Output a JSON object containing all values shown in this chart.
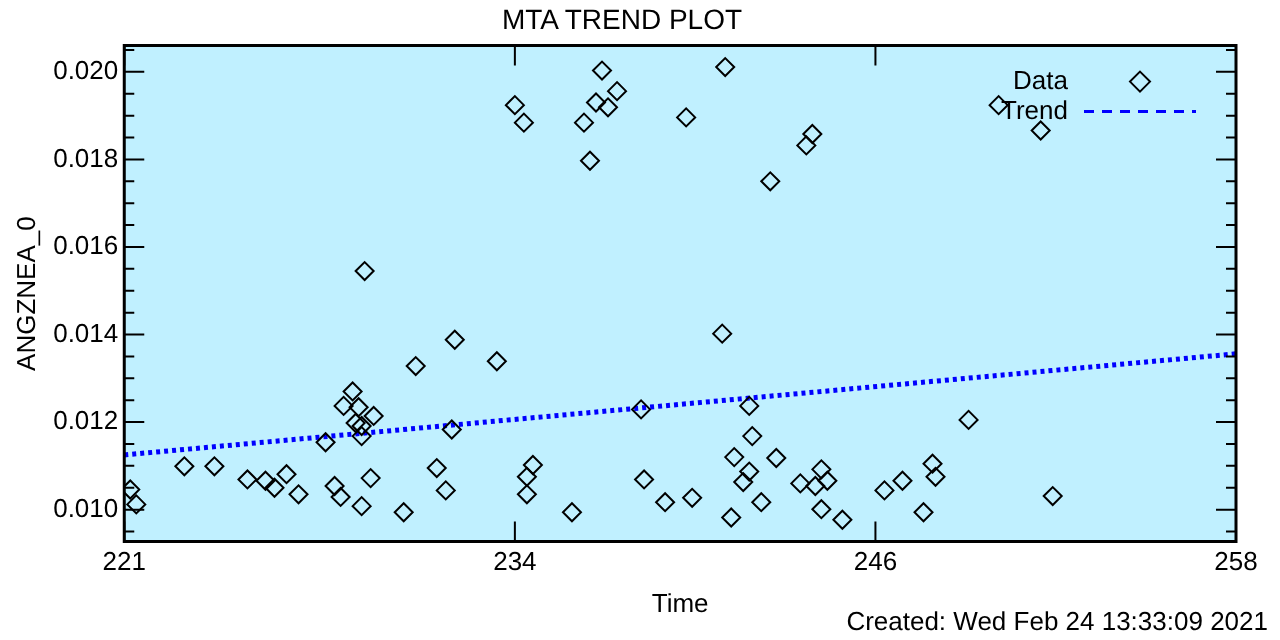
{
  "chart_data": {
    "type": "scatter",
    "title": "MTA TREND PLOT",
    "xlabel": "Time",
    "ylabel": "ANGZNEA_0",
    "annotations": [
      "Created: Wed Feb 24 13:33:09 2021"
    ],
    "xlim": [
      221,
      258
    ],
    "xticks": [
      221,
      234,
      246,
      258
    ],
    "ylim": [
      0.00927,
      0.0206
    ],
    "yticks": [
      {
        "value": 0.0095,
        "label": null
      },
      {
        "value": 0.01,
        "label": "0.010"
      },
      {
        "value": 0.0105,
        "label": null
      },
      {
        "value": 0.011,
        "label": null
      },
      {
        "value": 0.0115,
        "label": null
      },
      {
        "value": 0.012,
        "label": "0.012"
      },
      {
        "value": 0.0125,
        "label": null
      },
      {
        "value": 0.013,
        "label": null
      },
      {
        "value": 0.0135,
        "label": null
      },
      {
        "value": 0.014,
        "label": "0.014"
      },
      {
        "value": 0.0145,
        "label": null
      },
      {
        "value": 0.015,
        "label": null
      },
      {
        "value": 0.0155,
        "label": null
      },
      {
        "value": 0.016,
        "label": "0.016"
      },
      {
        "value": 0.0165,
        "label": null
      },
      {
        "value": 0.017,
        "label": null
      },
      {
        "value": 0.0175,
        "label": null
      },
      {
        "value": 0.018,
        "label": "0.018"
      },
      {
        "value": 0.0185,
        "label": null
      },
      {
        "value": 0.019,
        "label": null
      },
      {
        "value": 0.0195,
        "label": null
      },
      {
        "value": 0.02,
        "label": "0.020"
      },
      {
        "value": 0.0205,
        "label": null
      }
    ],
    "grid": false,
    "legend": "top right",
    "series": [
      {
        "name": "Data",
        "color": "#000000",
        "marker": "diamond",
        "x": [
          221.2,
          221.4,
          223.0,
          224.0,
          225.1,
          225.7,
          226.0,
          226.4,
          226.8,
          227.7,
          228.0,
          228.2,
          228.3,
          228.6,
          228.8,
          228.7,
          228.9,
          228.9,
          228.9,
          229.0,
          229.2,
          229.3,
          230.3,
          230.7,
          231.4,
          231.7,
          231.9,
          232.0,
          233.4,
          234.0,
          234.3,
          234.4,
          234.4,
          234.6,
          235.9,
          236.3,
          236.5,
          236.7,
          236.9,
          237.1,
          237.4,
          238.2,
          238.3,
          239.0,
          239.7,
          239.9,
          240.9,
          241.0,
          241.2,
          241.3,
          241.6,
          241.8,
          241.8,
          241.9,
          242.2,
          242.5,
          242.7,
          243.5,
          243.7,
          243.9,
          244.0,
          244.2,
          244.4,
          244.2,
          244.9,
          246.3,
          246.9,
          247.6,
          247.9,
          248.0,
          249.1,
          250.1,
          251.5,
          251.9
        ],
        "values": [
          0.01046,
          0.01012,
          0.01099,
          0.01099,
          0.01069,
          0.01066,
          0.0105,
          0.01081,
          0.01035,
          0.01154,
          0.01054,
          0.01029,
          0.01237,
          0.0127,
          0.01234,
          0.01198,
          0.01168,
          0.01191,
          0.01008,
          0.01545,
          0.01072,
          0.01214,
          0.00994,
          0.01328,
          0.01095,
          0.01044,
          0.01183,
          0.01388,
          0.01339,
          0.01924,
          0.01884,
          0.01035,
          0.01075,
          0.01102,
          0.00994,
          0.01884,
          0.01797,
          0.0193,
          0.02003,
          0.01919,
          0.01956,
          0.01229,
          0.01069,
          0.01017,
          0.01896,
          0.01027,
          0.01402,
          0.02011,
          0.00982,
          0.0112,
          0.01063,
          0.01087,
          0.01237,
          0.01168,
          0.01017,
          0.0175,
          0.01118,
          0.0106,
          0.01832,
          0.01858,
          0.01054,
          0.01092,
          0.01066,
          0.01001,
          0.00977,
          0.01044,
          0.01066,
          0.00994,
          0.01105,
          0.01075,
          0.01205,
          0.01924,
          0.01866,
          0.01031
        ]
      },
      {
        "name": "Trend",
        "type": "line",
        "color": "#0000ff",
        "line_style": "dotted",
        "x": [
          221,
          258
        ],
        "values": [
          0.01125,
          0.01356
        ]
      }
    ]
  }
}
